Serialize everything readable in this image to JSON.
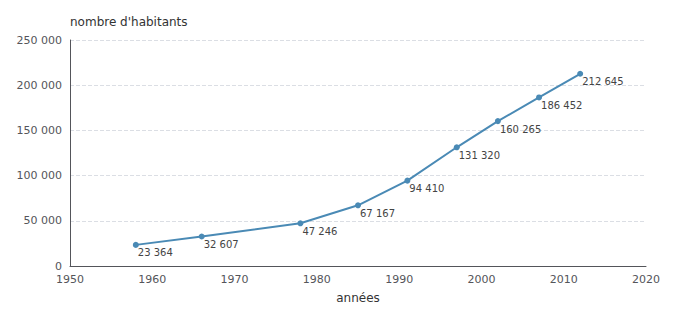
{
  "chart_data": {
    "type": "line",
    "x": [
      1958,
      1966,
      1978,
      1985,
      1991,
      1997,
      2002,
      2007,
      2012
    ],
    "values": [
      23364,
      32607,
      47246,
      67167,
      94410,
      131320,
      160265,
      186452,
      212645
    ],
    "value_labels": [
      "23 364",
      "32 607",
      "47 246",
      "67 167",
      "94 410",
      "131 320",
      "160 265",
      "186 452",
      "212 645"
    ],
    "color": "#4a8ab5",
    "marker": "circle",
    "xlabel": "années",
    "ylabel": "nombre d'habitants",
    "xlim": [
      1950,
      2020
    ],
    "ylim": [
      0,
      250000
    ],
    "xticks": [
      1950,
      1960,
      1970,
      1980,
      1990,
      2000,
      2010,
      2020
    ],
    "yticks": [
      0,
      {
        "value": 50000,
        "label": "50 000"
      },
      {
        "value": 100000,
        "label": "100 000"
      },
      {
        "value": 150000,
        "label": "150 000"
      },
      {
        "value": 200000,
        "label": "200 000"
      },
      {
        "value": 250000,
        "label": "250 000"
      }
    ],
    "grid": true,
    "data_labels": true
  }
}
